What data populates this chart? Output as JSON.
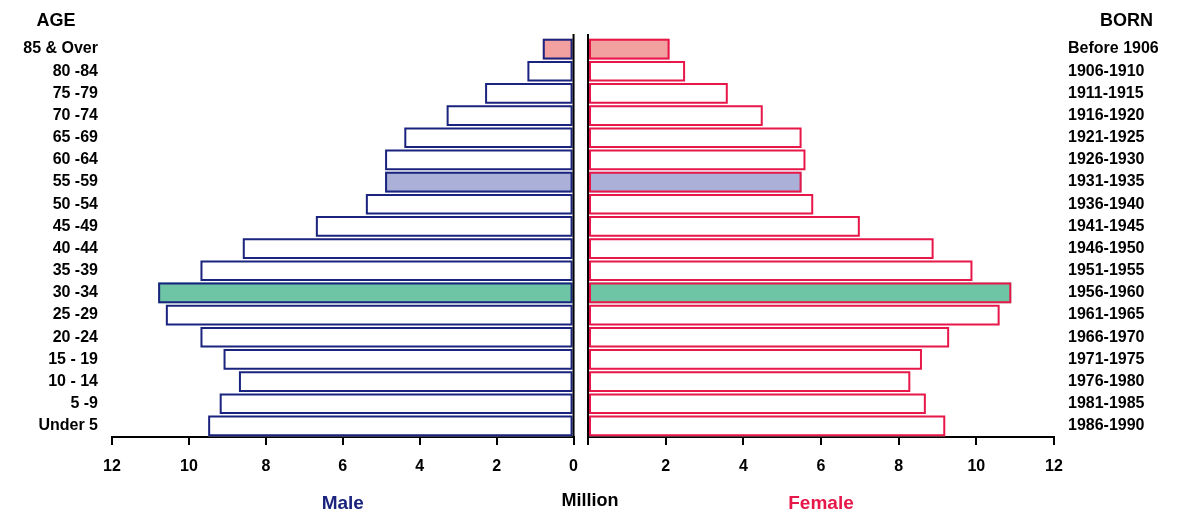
{
  "chart_data": [
    {
      "type": "bar",
      "orientation": "horizontal",
      "ylabel": "AGE",
      "xlabel": "Male",
      "annotations": [
        "Million"
      ],
      "categories": [
        "85 & Over",
        "80 -84",
        "75 -79",
        "70 -74",
        "65 -69",
        "60 -64",
        "55 -59",
        "50 -54",
        "45 -49",
        "40 -44",
        "35 -39",
        "30 -34",
        "25 -29",
        "20 -24",
        "15 - 19",
        "10 - 14",
        "5 -9",
        "Under 5"
      ],
      "series": [
        {
          "color": "#1a237e",
          "colors": [
            "#f2a0a0",
            "#ffffff",
            "#ffffff",
            "#ffffff",
            "#ffffff",
            "#ffffff",
            "#aab0d8",
            "#ffffff",
            "#ffffff",
            "#ffffff",
            "#ffffff",
            "#6dc5a5",
            "#ffffff",
            "#ffffff",
            "#ffffff",
            "#ffffff",
            "#ffffff",
            "#ffffff"
          ],
          "values": [
            0.8,
            1.2,
            2.3,
            3.3,
            4.4,
            4.9,
            4.9,
            5.4,
            6.7,
            8.6,
            9.7,
            10.8,
            10.6,
            9.7,
            9.1,
            8.7,
            9.2,
            9.5
          ]
        }
      ],
      "xlim": [
        12,
        0
      ],
      "xticks": [
        12,
        10,
        8,
        6,
        4,
        2,
        0
      ],
      "legend": false,
      "grid": false
    },
    {
      "type": "bar",
      "orientation": "horizontal",
      "ylabel": "BORN",
      "xlabel": "Female",
      "categories": [
        "Before 1906",
        "1906-1910",
        "1911-1915",
        "1916-1920",
        "1921-1925",
        "1926-1930",
        "1931-1935",
        "1936-1940",
        "1941-1945",
        "1946-1950",
        "1951-1955",
        "1956-1960",
        "1961-1965",
        "1966-1970",
        "1971-1975",
        "1976-1980",
        "1981-1985",
        "1986-1990"
      ],
      "series": [
        {
          "color": "#e8174a",
          "colors": [
            "#f2a0a0",
            "#ffffff",
            "#ffffff",
            "#ffffff",
            "#ffffff",
            "#ffffff",
            "#aab0d8",
            "#ffffff",
            "#ffffff",
            "#ffffff",
            "#ffffff",
            "#6dc5a5",
            "#ffffff",
            "#ffffff",
            "#ffffff",
            "#ffffff",
            "#ffffff",
            "#ffffff"
          ],
          "values": [
            2.1,
            2.5,
            3.6,
            4.5,
            5.5,
            5.6,
            5.5,
            5.8,
            7.0,
            8.9,
            9.9,
            10.9,
            10.6,
            9.3,
            8.6,
            8.3,
            8.7,
            9.2
          ]
        }
      ],
      "xlim": [
        0,
        12
      ],
      "xticks": [
        {
          "value": 0,
          "label": null
        },
        2,
        4,
        6,
        8,
        10,
        12
      ],
      "legend": false,
      "grid": false
    }
  ]
}
